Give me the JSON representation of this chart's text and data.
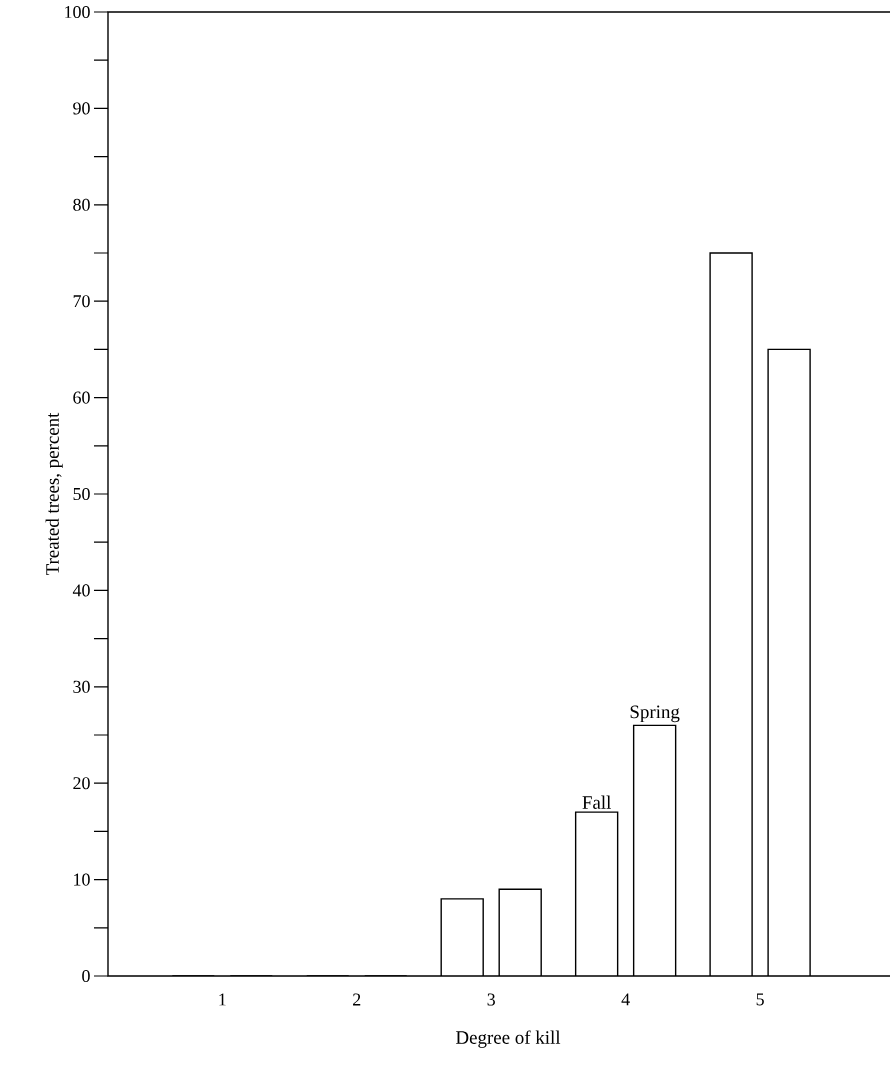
{
  "chart_data": {
    "type": "bar",
    "categories": [
      "1",
      "2",
      "3",
      "4",
      "5"
    ],
    "series": [
      {
        "name": "Fall",
        "color": "#ffffff",
        "values": [
          0,
          0,
          8,
          17,
          75
        ]
      },
      {
        "name": "Spring",
        "color": "#ffffff",
        "values": [
          0,
          0,
          9,
          26,
          65
        ]
      }
    ],
    "xlabel": "Degree of kill",
    "ylabel": "Treated trees, percent",
    "ylim": [
      0,
      100
    ],
    "yticks": [
      0,
      {
        "value": 5,
        "label": null
      },
      10,
      {
        "value": 15,
        "label": null
      },
      20,
      {
        "value": 25,
        "label": null
      },
      30,
      {
        "value": 35,
        "label": null
      },
      40,
      {
        "value": 45,
        "label": null
      },
      50,
      {
        "value": 55,
        "label": null
      },
      60,
      {
        "value": 65,
        "label": null
      },
      70,
      {
        "value": 75,
        "label": null
      },
      80,
      {
        "value": 85,
        "label": null
      },
      90,
      {
        "value": 95,
        "label": null
      },
      100
    ],
    "grid": false
  }
}
